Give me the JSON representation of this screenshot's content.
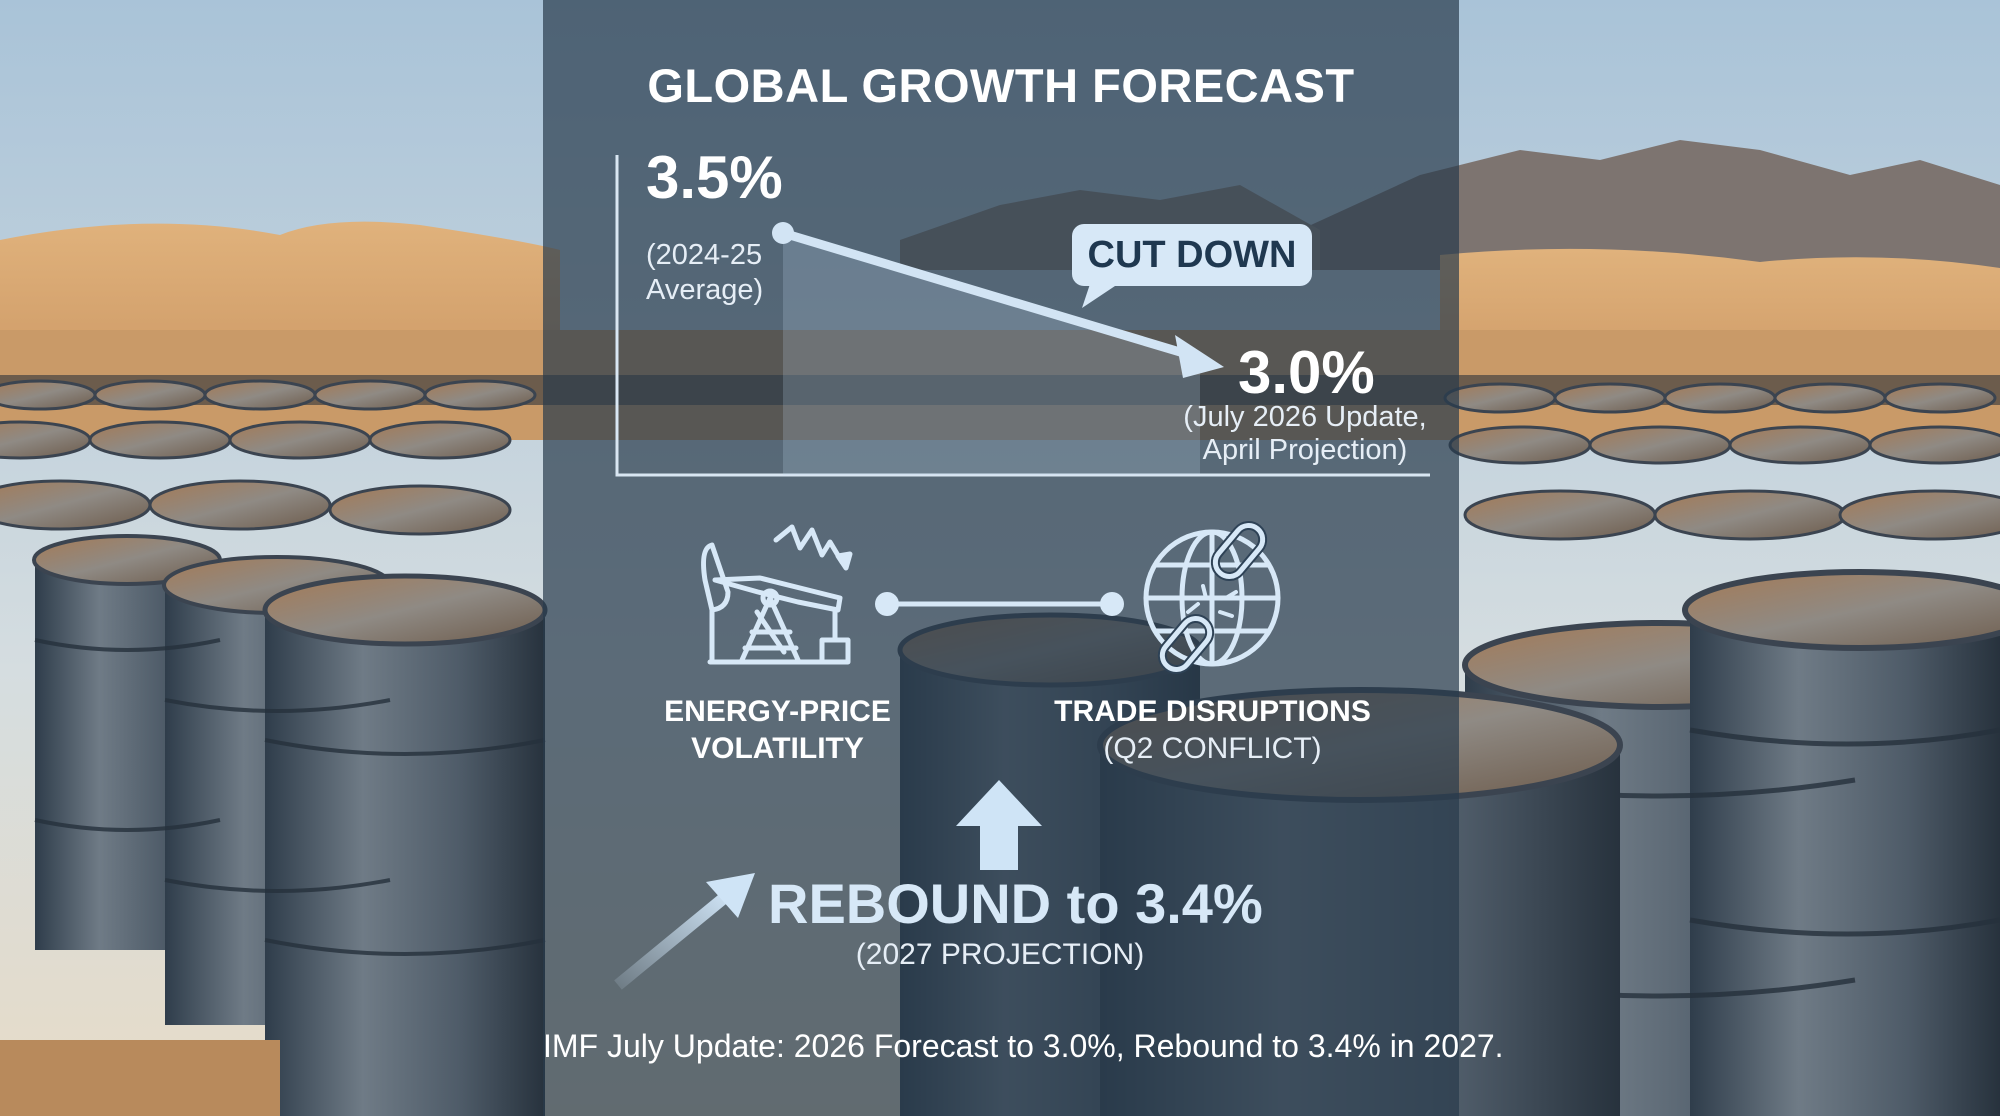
{
  "title": "GLOBAL GROWTH FORECAST",
  "start": {
    "value": "3.5%",
    "note_line1": "(2024-25",
    "note_line2": "Average)"
  },
  "end": {
    "value": "3.0%",
    "note_line1": "(July 2026 Update,",
    "note_line2": "April Projection)"
  },
  "callout": "CUT DOWN",
  "factors": [
    {
      "icon": "oil-pump-volatility-icon",
      "label_line1": "ENERGY-PRICE",
      "label_line2": "VOLATILITY"
    },
    {
      "icon": "globe-broken-chain-icon",
      "label_line1": "TRADE DISRUPTIONS",
      "label_line2": "(Q2 CONFLICT)"
    }
  ],
  "rebound": {
    "headline": "REBOUND to 3.4%",
    "sub": "(2027 PROJECTION)"
  },
  "footer": "IMF July Update: 2026 Forecast to 3.0%, Rebound to 3.4% in 2027.",
  "colors": {
    "accent": "#cfe4f6",
    "panel": "#283a4c",
    "badge": "#d7e8f7",
    "badge_text": "#1f3850"
  }
}
